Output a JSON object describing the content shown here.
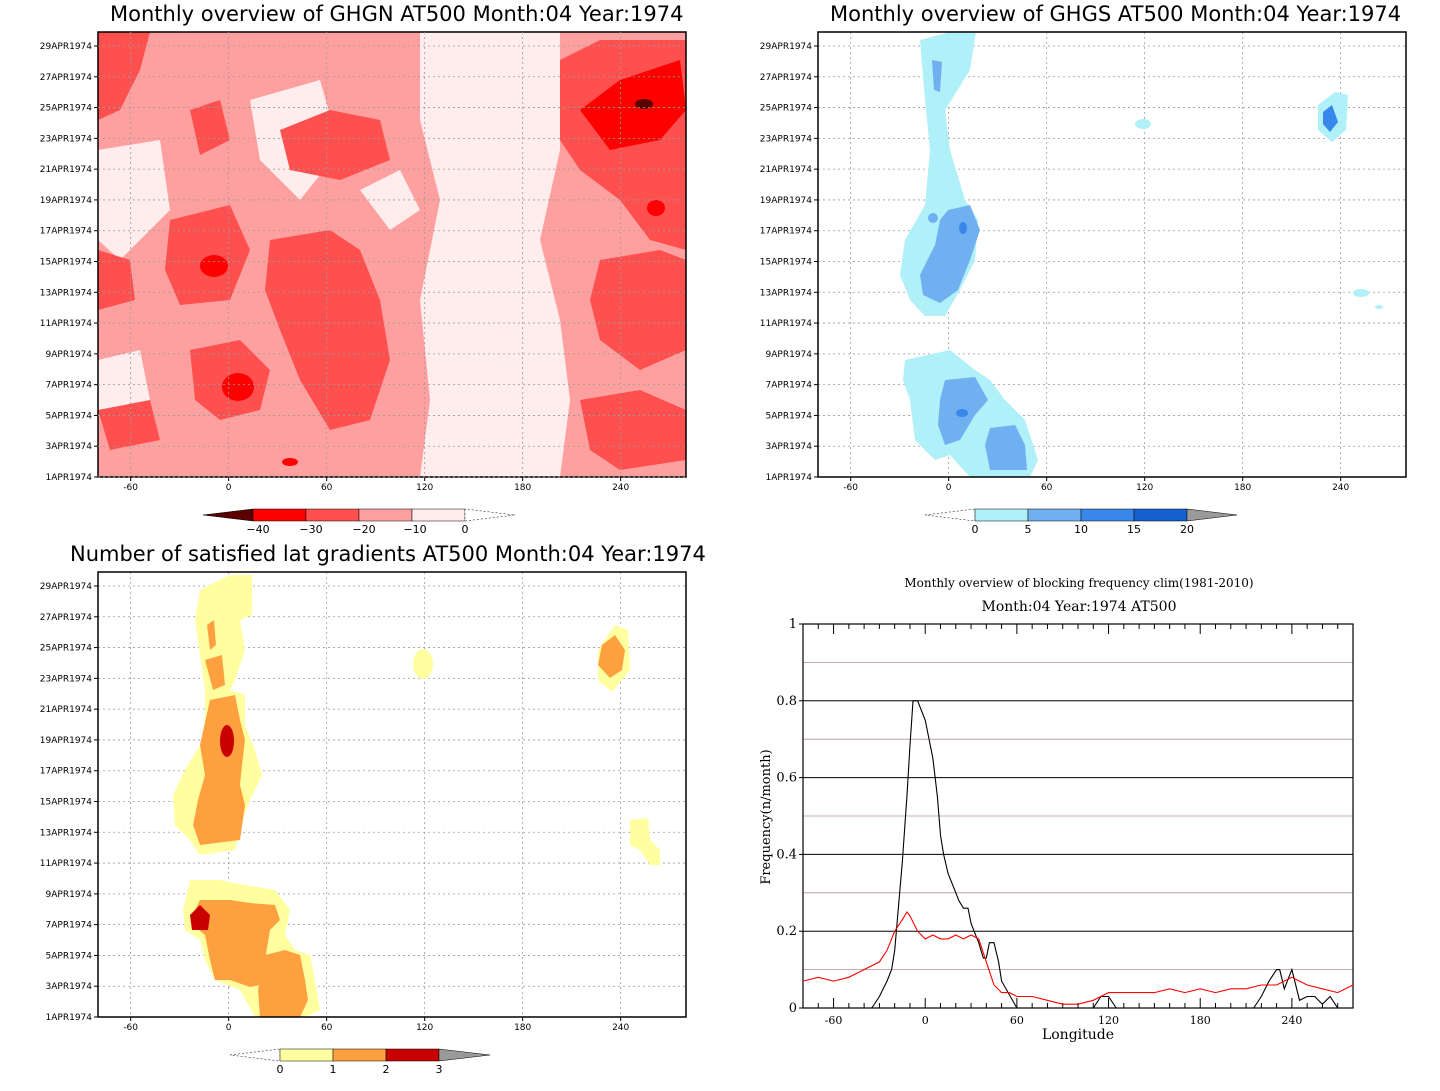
{
  "dates": [
    "1APR1974",
    "3APR1974",
    "5APR1974",
    "7APR1974",
    "9APR1974",
    "11APR1974",
    "13APR1974",
    "15APR1974",
    "17APR1974",
    "19APR1974",
    "21APR1974",
    "23APR1974",
    "25APR1974",
    "27APR1974",
    "29APR1974"
  ],
  "lon_ticks": [
    "-60",
    "0",
    "60",
    "120",
    "180",
    "240"
  ],
  "chart_data": [
    {
      "type": "heatmap",
      "title": "Monthly overview of GHGN AT500 Month:04 Year:1974",
      "xlim": [
        -80,
        280
      ],
      "x_ticks": [
        -60,
        0,
        60,
        120,
        180,
        240
      ],
      "colorbar": {
        "labels": [
          "−40",
          "−30",
          "−20",
          "−10",
          "0"
        ],
        "colors": [
          "#5a0000",
          "#ff0000",
          "#ff5050",
          "#ffa0a0",
          "#ffecec",
          "#ffffff"
        ]
      },
      "values_description_free": true,
      "cells": [
        {
          "lon": -70,
          "day": 27,
          "level": 3
        },
        {
          "lon": -60,
          "day": 23,
          "level": 2
        },
        {
          "lon": -10,
          "day": 25,
          "level": 3
        },
        {
          "lon": -15,
          "day": 15,
          "level": 3
        },
        {
          "lon": -10,
          "day": 15,
          "level": 5
        },
        {
          "lon": 10,
          "day": 7,
          "level": 5
        },
        {
          "lon": 250,
          "day": 25,
          "level": 5
        },
        {
          "lon": 260,
          "day": 26,
          "level": 6
        },
        {
          "lon": 260,
          "day": 19,
          "level": 5
        },
        {
          "lon": 40,
          "day": 2,
          "level": 5
        }
      ]
    },
    {
      "type": "heatmap",
      "title": "Monthly overview of GHGS AT500 Month:04 Year:1974",
      "xlim": [
        -80,
        280
      ],
      "x_ticks": [
        -60,
        0,
        60,
        120,
        180,
        240
      ],
      "colorbar": {
        "labels": [
          "0",
          "5",
          "10",
          "15",
          "20"
        ],
        "colors": [
          "#ffffff",
          "#b0f0f8",
          "#70b0f0",
          "#3888ec",
          "#1460d0",
          "#9a9a9a"
        ]
      }
    },
    {
      "type": "heatmap",
      "title": "Number of satisfied lat gradients AT500 Month:04 Year:1974",
      "xlim": [
        -80,
        280
      ],
      "x_ticks": [
        -60,
        0,
        60,
        120,
        180,
        240
      ],
      "colorbar": {
        "labels": [
          "0",
          "1",
          "2",
          "3"
        ],
        "colors": [
          "#ffffff",
          "#ffffa0",
          "#ffa040",
          "#c80000",
          "#9a9a9a"
        ]
      }
    },
    {
      "type": "line",
      "title": "Monthly overview of blocking frequency clim(1981-2010)",
      "subtitle": "Month:04 Year:1974  AT500",
      "xlabel": "Longitude",
      "ylabel": "Frequency(n/month)",
      "xlim": [
        -80,
        280
      ],
      "ylim": [
        0,
        1
      ],
      "x_ticks": [
        -60,
        0,
        60,
        120,
        180,
        240
      ],
      "y_ticks": [
        "0",
        "0.2",
        "0.4",
        "0.6",
        "0.8",
        "1"
      ],
      "grid": true,
      "series": [
        {
          "color": "#000000",
          "x": [
            -80,
            -35,
            -30,
            -25,
            -22,
            -20,
            -15,
            -12,
            -10,
            -8,
            -5,
            0,
            5,
            8,
            10,
            12,
            15,
            20,
            22,
            25,
            28,
            30,
            32,
            35,
            38,
            40,
            42,
            45,
            48,
            50,
            60,
            80,
            110,
            115,
            120,
            125,
            130,
            200,
            215,
            220,
            225,
            230,
            232,
            235,
            240,
            245,
            250,
            255,
            260,
            265,
            270,
            280
          ],
          "y": [
            0,
            0,
            0.03,
            0.07,
            0.1,
            0.15,
            0.38,
            0.55,
            0.68,
            0.8,
            0.8,
            0.75,
            0.65,
            0.55,
            0.45,
            0.4,
            0.35,
            0.3,
            0.28,
            0.26,
            0.26,
            0.22,
            0.2,
            0.17,
            0.13,
            0.13,
            0.17,
            0.17,
            0.12,
            0.07,
            0,
            0,
            0,
            0.03,
            0.03,
            0,
            0,
            0,
            0,
            0.03,
            0.07,
            0.1,
            0.1,
            0.05,
            0.1,
            0.02,
            0.03,
            0.03,
            0.01,
            0.03,
            0,
            0
          ]
        },
        {
          "color": "#ff0000",
          "x": [
            -80,
            -70,
            -60,
            -50,
            -40,
            -30,
            -25,
            -20,
            -15,
            -12,
            -10,
            -5,
            0,
            5,
            10,
            15,
            20,
            25,
            30,
            35,
            40,
            45,
            50,
            55,
            60,
            70,
            80,
            90,
            100,
            110,
            120,
            130,
            140,
            150,
            160,
            170,
            180,
            190,
            200,
            210,
            220,
            230,
            240,
            250,
            260,
            270,
            280
          ],
          "y": [
            0.07,
            0.08,
            0.07,
            0.08,
            0.1,
            0.12,
            0.15,
            0.2,
            0.23,
            0.25,
            0.24,
            0.2,
            0.18,
            0.19,
            0.18,
            0.18,
            0.19,
            0.18,
            0.19,
            0.18,
            0.12,
            0.06,
            0.04,
            0.04,
            0.03,
            0.03,
            0.02,
            0.01,
            0.01,
            0.02,
            0.04,
            0.04,
            0.04,
            0.04,
            0.05,
            0.04,
            0.05,
            0.04,
            0.05,
            0.05,
            0.06,
            0.06,
            0.08,
            0.06,
            0.05,
            0.04,
            0.06
          ]
        }
      ]
    }
  ]
}
